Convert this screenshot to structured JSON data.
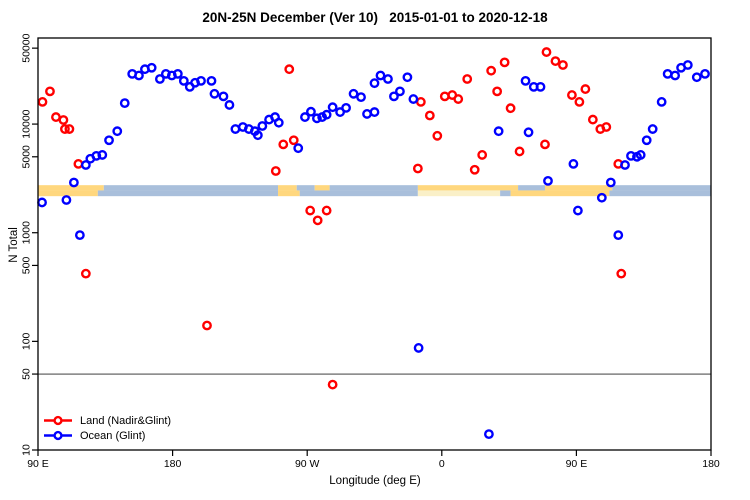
{
  "chart_data": {
    "type": "scatter",
    "title": "20N-25N December (Ver 10)   2015-01-01 to 2020-12-18",
    "xlabel": "Longitude (deg E)",
    "ylabel": "N Total",
    "x_axis": {
      "min": 90,
      "max": 540,
      "ticks": [
        {
          "v": 90,
          "label": "90 E"
        },
        {
          "v": 180,
          "label": "180"
        },
        {
          "v": 270,
          "label": "90 W"
        },
        {
          "v": 360,
          "label": "0"
        },
        {
          "v": 450,
          "label": "90 E"
        },
        {
          "v": 540,
          "label": "180"
        }
      ]
    },
    "y_axis": {
      "scale": "log",
      "min": 10,
      "max": 62000,
      "ticks": [
        10,
        50,
        100,
        500,
        1000,
        5000,
        10000,
        50000
      ]
    },
    "reference_line": {
      "value": 50,
      "color": "#7f7f7f"
    },
    "coast_band": {
      "value_top": 2740,
      "value_mid": 2450,
      "value_bottom": 2170,
      "colors": {
        "land": "#ffd77e",
        "ocean": "#a9bfdb",
        "sand": "#faf0c8"
      },
      "rows": [
        {
          "name": "north",
          "segments": [
            {
              "from": 90,
              "to": 134,
              "c": "land"
            },
            {
              "from": 134,
              "to": 250.5,
              "c": "ocean"
            },
            {
              "from": 250.5,
              "to": 263,
              "c": "land"
            },
            {
              "from": 263,
              "to": 275,
              "c": "ocean"
            },
            {
              "from": 275,
              "to": 285,
              "c": "land"
            },
            {
              "from": 285,
              "to": 344,
              "c": "ocean"
            },
            {
              "from": 344,
              "to": 411,
              "c": "land"
            },
            {
              "from": 411,
              "to": 429,
              "c": "ocean"
            },
            {
              "from": 429,
              "to": 474,
              "c": "land"
            },
            {
              "from": 474,
              "to": 540,
              "c": "ocean"
            }
          ]
        },
        {
          "name": "south",
          "segments": [
            {
              "from": 90,
              "to": 130,
              "c": "land"
            },
            {
              "from": 130,
              "to": 250.5,
              "c": "ocean"
            },
            {
              "from": 250.5,
              "to": 265,
              "c": "land"
            },
            {
              "from": 265,
              "to": 344,
              "c": "ocean"
            },
            {
              "from": 344,
              "to": 399,
              "c": "sand"
            },
            {
              "from": 399,
              "to": 406,
              "c": "ocean"
            },
            {
              "from": 406,
              "to": 472,
              "c": "land"
            },
            {
              "from": 472,
              "to": 540,
              "c": "ocean"
            }
          ]
        }
      ]
    },
    "series": [
      {
        "name": "Land (Nadir&Glint)",
        "color": "#ff0000",
        "points": [
          [
            98,
            20000
          ],
          [
            93,
            16000
          ],
          [
            102,
            11600
          ],
          [
            107,
            10900
          ],
          [
            108,
            9000
          ],
          [
            111,
            9000
          ],
          [
            117,
            4300
          ],
          [
            122,
            420
          ],
          [
            203,
            140
          ],
          [
            258,
            32000
          ],
          [
            254,
            6500
          ],
          [
            261,
            7100
          ],
          [
            249,
            3700
          ],
          [
            272,
            1600
          ],
          [
            283,
            1600
          ],
          [
            277,
            1300
          ],
          [
            287,
            40
          ],
          [
            344,
            3900
          ],
          [
            346,
            16000
          ],
          [
            352,
            12000
          ],
          [
            357,
            7800
          ],
          [
            362,
            18000
          ],
          [
            367,
            18500
          ],
          [
            371,
            17000
          ],
          [
            377,
            26000
          ],
          [
            382,
            3800
          ],
          [
            387,
            5200
          ],
          [
            393,
            31000
          ],
          [
            397,
            20000
          ],
          [
            402,
            37000
          ],
          [
            406,
            14000
          ],
          [
            412,
            5600
          ],
          [
            429,
            6500
          ],
          [
            430,
            46000
          ],
          [
            436,
            38000
          ],
          [
            441,
            35000
          ],
          [
            447,
            18500
          ],
          [
            452,
            16000
          ],
          [
            456,
            21000
          ],
          [
            461,
            11000
          ],
          [
            466,
            9000
          ],
          [
            470,
            9400
          ],
          [
            478,
            4300
          ],
          [
            480,
            420
          ]
        ]
      },
      {
        "name": "Ocean (Glint)",
        "color": "#0000ff",
        "points": [
          [
            92.7,
            1900
          ],
          [
            109,
            2000
          ],
          [
            114,
            2900
          ],
          [
            118,
            950
          ],
          [
            122,
            4200
          ],
          [
            125,
            4800
          ],
          [
            129,
            5100
          ],
          [
            133,
            5200
          ],
          [
            137.5,
            7100
          ],
          [
            143,
            8600
          ],
          [
            148,
            15600
          ],
          [
            153,
            29000
          ],
          [
            157.5,
            28000
          ],
          [
            161.5,
            32000
          ],
          [
            166,
            33000
          ],
          [
            171.5,
            26000
          ],
          [
            175.5,
            29000
          ],
          [
            179.5,
            28000
          ],
          [
            183.5,
            29000
          ],
          [
            187.5,
            25000
          ],
          [
            191.5,
            22000
          ],
          [
            195,
            24000
          ],
          [
            199,
            25000
          ],
          [
            206,
            25000
          ],
          [
            208,
            19000
          ],
          [
            214,
            18000
          ],
          [
            218,
            15000
          ],
          [
            222,
            9000
          ],
          [
            227,
            9400
          ],
          [
            231,
            9000
          ],
          [
            235,
            8600
          ],
          [
            237,
            7900
          ],
          [
            240,
            9600
          ],
          [
            244.5,
            11000
          ],
          [
            248.5,
            11600
          ],
          [
            251,
            10300
          ],
          [
            264,
            6000
          ],
          [
            268.5,
            11600
          ],
          [
            272.5,
            13000
          ],
          [
            276.5,
            11300
          ],
          [
            280,
            11600
          ],
          [
            283,
            12200
          ],
          [
            287,
            14300
          ],
          [
            292,
            12900
          ],
          [
            296,
            14100
          ],
          [
            301,
            19000
          ],
          [
            306,
            17700
          ],
          [
            310,
            12400
          ],
          [
            315,
            12900
          ],
          [
            315,
            23800
          ],
          [
            319,
            28000
          ],
          [
            324,
            26000
          ],
          [
            328,
            18000
          ],
          [
            332,
            20000
          ],
          [
            337,
            27000
          ],
          [
            341,
            17000
          ],
          [
            344.5,
            87
          ],
          [
            391.5,
            14
          ],
          [
            398,
            8600
          ],
          [
            416,
            25000
          ],
          [
            418,
            8400
          ],
          [
            421.5,
            22000
          ],
          [
            426,
            22000
          ],
          [
            431,
            3000
          ],
          [
            448,
            4300
          ],
          [
            451,
            1600
          ],
          [
            467,
            2100
          ],
          [
            473,
            2900
          ],
          [
            478,
            950
          ],
          [
            482.5,
            4200
          ],
          [
            486.5,
            5100
          ],
          [
            490.5,
            5000
          ],
          [
            493,
            5200
          ],
          [
            497,
            7100
          ],
          [
            501,
            9000
          ],
          [
            507,
            16000
          ],
          [
            511,
            29000
          ],
          [
            516,
            28000
          ],
          [
            520,
            33000
          ],
          [
            524.5,
            35000
          ],
          [
            530.5,
            27000
          ],
          [
            536,
            29000
          ]
        ]
      }
    ],
    "legend_position": "bottom-left",
    "marker": {
      "shape": "open-circle",
      "radius": 3.7,
      "stroke_width": 2.4
    }
  }
}
